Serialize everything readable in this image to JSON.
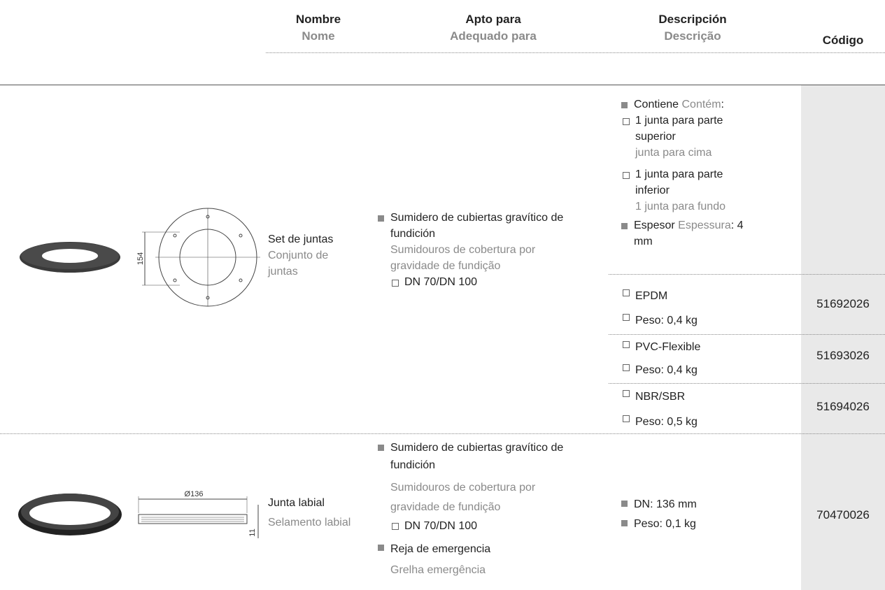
{
  "header": {
    "name_es": "Nombre",
    "name_pt": "Nome",
    "fit_es": "Apto para",
    "fit_pt": "Adequado para",
    "desc_es": "Descripción",
    "desc_pt": "Descrição",
    "code": "Código"
  },
  "rows": [
    {
      "name_es": "Set de juntas",
      "name_pt": "Conjunto de juntas",
      "dimension": "154",
      "fit": [
        {
          "es": "Sumidero de cubiertas gravítico de fundición",
          "pt": "Sumidouros de cobertura por gravidade de fundição",
          "sizes": "DN 70/DN 100"
        }
      ],
      "description": {
        "contains_es": "Contiene",
        "contains_pt": "Contém",
        "contains_colon": ":",
        "items": [
          {
            "es": "1 junta para parte superior",
            "pt": "junta para cima"
          },
          {
            "es": "1 junta para parte inferior",
            "pt": "1 junta para fundo"
          }
        ],
        "thickness_es": "Espesor",
        "thickness_pt": "Espessura",
        "thickness_value": ": 4 mm"
      },
      "variants": [
        {
          "material": "EPDM",
          "weight": "Peso: 0,4 kg",
          "code": "51692026"
        },
        {
          "material": "PVC-Flexible",
          "weight": "Peso: 0,4 kg",
          "code": "51693026"
        },
        {
          "material": "NBR/SBR",
          "weight": "Peso: 0,5 kg",
          "code": "51694026"
        }
      ]
    },
    {
      "name_es": "Junta labial",
      "name_pt": "Selamento labial",
      "dimension_diameter": "Ø136",
      "dimension_height": "11",
      "fit": [
        {
          "es": "Sumidero de cubiertas gravítico de fundición",
          "pt": "Sumidouros de cobertura por gravidade de fundição",
          "sizes": "DN 70/DN 100"
        },
        {
          "es": "Reja de emergencia",
          "pt": "Grelha emergência"
        }
      ],
      "description": {
        "items": [
          "DN: 136 mm",
          "Peso: 0,1 kg"
        ]
      },
      "code": "70470026"
    }
  ]
}
